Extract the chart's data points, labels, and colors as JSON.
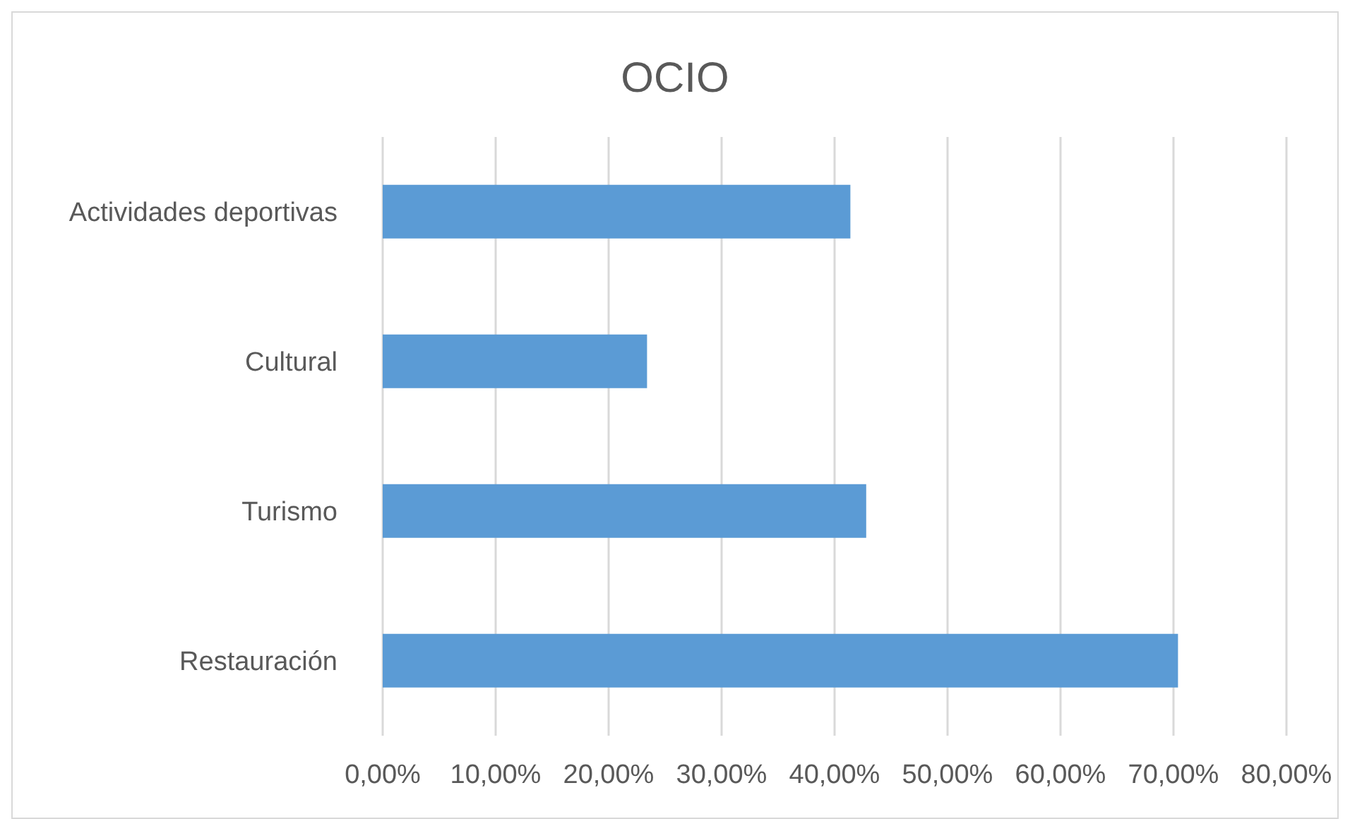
{
  "chart_data": {
    "type": "bar",
    "orientation": "horizontal",
    "title": "OCIO",
    "categories": [
      "Actividades deportivas",
      "Cultural",
      "Turismo",
      "Restauración"
    ],
    "values": [
      41.4,
      23.4,
      42.8,
      70.4
    ],
    "color": "#5b9bd5",
    "xlim": [
      0,
      80
    ],
    "xticks": [
      {
        "value": 0,
        "label": "0,00%"
      },
      {
        "value": 10,
        "label": "10,00%"
      },
      {
        "value": 20,
        "label": "20,00%"
      },
      {
        "value": 30,
        "label": "30,00%"
      },
      {
        "value": 40,
        "label": "40,00%"
      },
      {
        "value": 50,
        "label": "50,00%"
      },
      {
        "value": 60,
        "label": "60,00%"
      },
      {
        "value": 70,
        "label": "70,00%"
      },
      {
        "value": 80,
        "label": "80,00%"
      }
    ],
    "grid": "x"
  }
}
